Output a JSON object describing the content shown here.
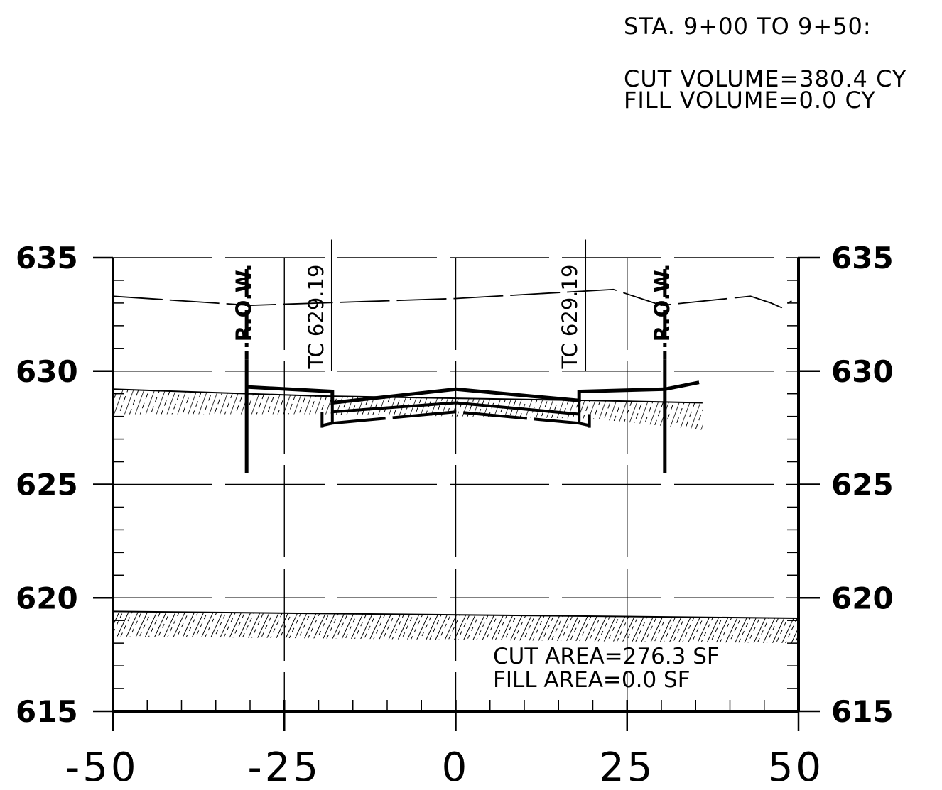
{
  "header": {
    "station_range": "STA. 9+00 TO 9+50:",
    "cut_volume": "CUT VOLUME=380.4 CY",
    "fill_volume": "FILL VOLUME=0.0 CY"
  },
  "plot": {
    "cut_area": "CUT AREA=276.3 SF",
    "fill_area": "FILL AREA=0.0 SF",
    "row_label": "R.O.W.",
    "tc_label": "TC 629.19",
    "y_ticks": [
      "635",
      "630",
      "625",
      "620",
      "615"
    ],
    "x_ticks": [
      "-50",
      "-25",
      "0",
      "25",
      "50"
    ]
  },
  "chart_data": {
    "type": "cross-section",
    "x_range": [
      -50,
      50
    ],
    "y_range": [
      615,
      635
    ],
    "x_major_ticks": [
      -50,
      -25,
      0,
      25,
      50
    ],
    "y_major_ticks": [
      615,
      620,
      625,
      630,
      635
    ],
    "row_offsets": [
      -30.5,
      30.5
    ],
    "tc_offsets": [
      -18.5,
      18.5
    ],
    "tc_elevation": 629.19,
    "existing_ground_top": [
      [
        -50,
        633.3
      ],
      [
        -30,
        632.9
      ],
      [
        0,
        633.2
      ],
      [
        23,
        633.6
      ],
      [
        30,
        632.9
      ],
      [
        43,
        633.3
      ],
      [
        46,
        633.0
      ],
      [
        47.5,
        632.8
      ],
      [
        49,
        633.1
      ]
    ],
    "existing_ground_upper": [
      [
        -50,
        629.2
      ],
      [
        -20,
        628.9
      ],
      [
        0,
        628.8
      ],
      [
        20,
        628.7
      ],
      [
        36,
        628.6
      ]
    ],
    "proposed_grade": [
      [
        -30.5,
        629.3
      ],
      [
        -18,
        629.1
      ],
      [
        -18,
        628.6
      ],
      [
        0,
        629.2
      ],
      [
        18,
        628.7
      ],
      [
        18,
        629.1
      ],
      [
        30.5,
        629.2
      ],
      [
        35.5,
        629.5
      ]
    ],
    "lower_strata_line": [
      [
        -50,
        619.4
      ],
      [
        50,
        619.1
      ]
    ],
    "cut_area_sf": 276.3,
    "fill_area_sf": 0.0,
    "cut_volume_cy": 380.4,
    "fill_volume_cy": 0.0
  }
}
